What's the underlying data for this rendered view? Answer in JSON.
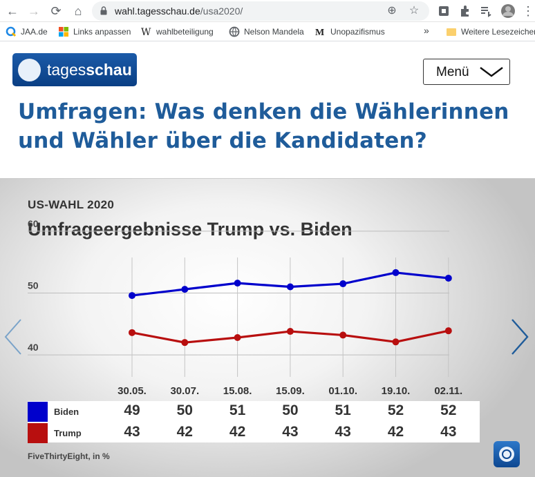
{
  "browser": {
    "url_host": "wahl.tagesschau.de",
    "url_path": "/usa2020/",
    "bookmarks": [
      {
        "label": "JAA.de",
        "icon": "q-icon"
      },
      {
        "label": "Links anpassen",
        "icon": "windows-icon"
      },
      {
        "label": "wahlbeteiligung",
        "icon": "wikipedia-icon"
      },
      {
        "label": "Nelson Mandela",
        "icon": "globe-icon"
      },
      {
        "label": "Unopazifismus",
        "icon": "m-icon"
      }
    ],
    "bookmarks_more": "»",
    "other_bookmarks": "Weitere Lesezeichen"
  },
  "site": {
    "logo_light": "tages",
    "logo_bold": "schau",
    "menu_label": "Menü",
    "headline": "Umfragen: Was denken die Wählerinnen und Wähler über die Kandidaten?"
  },
  "graphic": {
    "kicker": "US-WAHL 2020",
    "title": "Umfrageergebnisse Trump vs. Biden",
    "source": "FiveThirtyEight, in %"
  },
  "chart_data": {
    "type": "line",
    "categories": [
      "30.05.",
      "30.07.",
      "15.08.",
      "15.09.",
      "01.10.",
      "19.10.",
      "02.11."
    ],
    "ylim": [
      37,
      64
    ],
    "yticks": [
      40,
      50,
      60
    ],
    "grid": true,
    "series": [
      {
        "name": "Biden",
        "color": "#0000cc",
        "values": [
          49,
          50,
          51,
          50,
          51,
          52,
          52
        ],
        "line": [
          49.6,
          50.6,
          51.6,
          51.0,
          51.5,
          53.3,
          52.4
        ]
      },
      {
        "name": "Trump",
        "color": "#b80f0f",
        "values": [
          43,
          42,
          42,
          43,
          43,
          42,
          43
        ],
        "line": [
          43.6,
          42.0,
          42.8,
          43.8,
          43.2,
          42.1,
          43.9
        ]
      }
    ]
  }
}
